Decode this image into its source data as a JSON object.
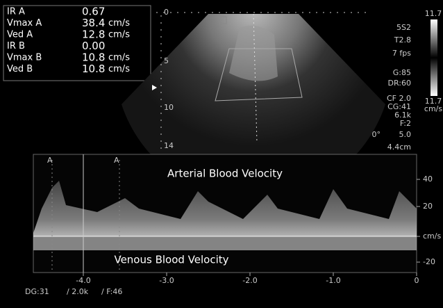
{
  "measurements": [
    {
      "label": "IR A",
      "value": "0.67"
    },
    {
      "label": "Vmax A",
      "value": "38.4",
      "unit": "cm/s"
    },
    {
      "label": "Ved A",
      "value": "12.8",
      "unit": "cm/s"
    },
    {
      "label": "IR B",
      "value": "0.00"
    },
    {
      "label": "Vmax B",
      "value": "10.8",
      "unit": "cm/s"
    },
    {
      "label": "Ved B",
      "value": "10.8",
      "unit": "cm/s"
    }
  ],
  "depth_markers": [
    "0",
    "5",
    "10",
    "14"
  ],
  "settings": [
    "5S2",
    "T2.8",
    "7 fps",
    "G:85",
    "DR:60",
    "CF 2.0",
    "CG:41",
    "6.1k",
    "F:2",
    "0°",
    "5.0",
    "4.4cm"
  ],
  "color_bar": {
    "top": "11.7",
    "bottom": "11.7",
    "unit": "cm/s"
  },
  "doppler": {
    "arterial_label": "Arterial Blood Velocity",
    "venous_label": "Venous Blood Velocity",
    "velocity_ticks": [
      "40",
      "20",
      "cm/s",
      "-20"
    ],
    "time_ticks": [
      "-4.0",
      "-3.0",
      "-2.0",
      "-1.0",
      "0"
    ],
    "cursor_labels": [
      "A",
      "A"
    ]
  },
  "footer": [
    "DG:31",
    "/ 2.0k",
    "/ F:46"
  ]
}
